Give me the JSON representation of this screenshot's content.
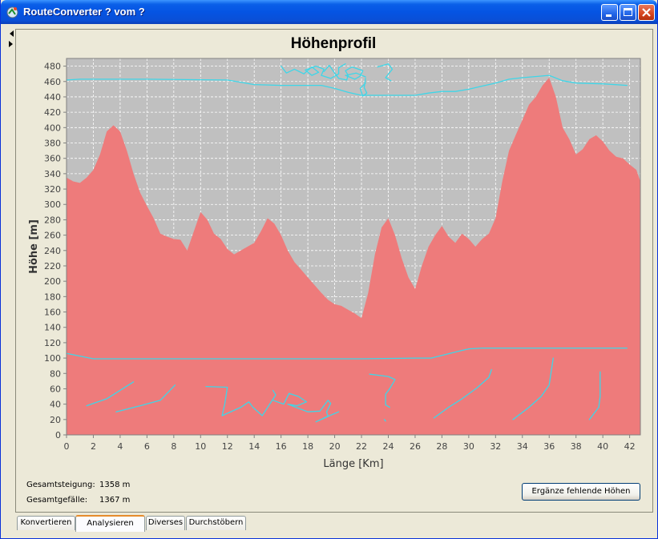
{
  "window": {
    "title": "RouteConverter ? vom ?"
  },
  "chart_data": {
    "type": "area",
    "title": "Höhenprofil",
    "xlabel": "Länge [Km]",
    "ylabel": "Höhe [m]",
    "xlim": [
      0,
      42.8
    ],
    "ylim": [
      0,
      490
    ],
    "x_ticks": [
      "0",
      "2",
      "4",
      "6",
      "8",
      "10",
      "12",
      "14",
      "16",
      "18",
      "20",
      "22",
      "24",
      "26",
      "28",
      "30",
      "32",
      "34",
      "36",
      "38",
      "40",
      "42"
    ],
    "y_ticks": [
      "0",
      "20",
      "40",
      "60",
      "80",
      "100",
      "120",
      "140",
      "160",
      "180",
      "200",
      "220",
      "240",
      "260",
      "280",
      "300",
      "320",
      "340",
      "360",
      "380",
      "400",
      "420",
      "440",
      "460",
      "480"
    ],
    "grid": true,
    "colors": {
      "fill": "#ee7b7b",
      "background": "#c0c0c0",
      "annotation": "#3ed6e8"
    },
    "series": [
      {
        "x": [
          0,
          0.5,
          1,
          1.5,
          2,
          2.5,
          3,
          3.5,
          4,
          4.5,
          5,
          5.5,
          6,
          6.5,
          7,
          7.5,
          8,
          8.5,
          9,
          9.5,
          10,
          10.5,
          11,
          11.5,
          12,
          12.5,
          13,
          13.5,
          14,
          14.5,
          15,
          15.5,
          16,
          16.5,
          17,
          17.5,
          18,
          18.5,
          19,
          19.5,
          20,
          20.5,
          21,
          21.5,
          22,
          22.5,
          23,
          23.5,
          24,
          24.5,
          25,
          25.5,
          26,
          26.5,
          27,
          27.5,
          28,
          28.5,
          29,
          29.5,
          30,
          30.5,
          31,
          31.5,
          32,
          32.5,
          33,
          33.5,
          34,
          34.5,
          35,
          35.5,
          36,
          36.5,
          37,
          37.5,
          38,
          38.5,
          39,
          39.5,
          40,
          40.5,
          41,
          41.5,
          42,
          42.5,
          42.8
        ],
        "values": [
          335,
          330,
          328,
          335,
          345,
          365,
          395,
          403,
          395,
          370,
          340,
          315,
          298,
          282,
          262,
          258,
          255,
          254,
          240,
          265,
          290,
          280,
          262,
          255,
          242,
          235,
          240,
          245,
          250,
          265,
          282,
          275,
          260,
          240,
          225,
          215,
          205,
          195,
          185,
          176,
          170,
          168,
          163,
          158,
          152,
          185,
          235,
          270,
          282,
          260,
          230,
          205,
          190,
          220,
          245,
          260,
          272,
          258,
          250,
          262,
          255,
          245,
          255,
          262,
          282,
          330,
          370,
          390,
          410,
          430,
          440,
          455,
          465,
          440,
          400,
          385,
          365,
          372,
          385,
          390,
          382,
          370,
          362,
          360,
          352,
          345,
          330
        ]
      }
    ],
    "annotations": [
      {
        "type": "polyline",
        "points": [
          [
            0,
            106
          ],
          [
            2,
            99
          ],
          [
            8,
            99
          ],
          [
            16,
            99
          ],
          [
            22,
            99
          ],
          [
            26,
            100
          ],
          [
            27.2,
            100
          ],
          [
            28.6,
            106
          ],
          [
            29.5,
            110
          ],
          [
            30,
            112
          ],
          [
            31,
            113
          ],
          [
            34,
            113
          ],
          [
            38,
            113
          ],
          [
            41.8,
            113
          ]
        ]
      },
      {
        "type": "polyline",
        "points": [
          [
            0,
            462
          ],
          [
            1,
            463
          ],
          [
            6,
            463
          ],
          [
            12,
            462
          ],
          [
            14,
            456
          ],
          [
            16,
            455
          ],
          [
            19,
            455
          ],
          [
            20,
            451
          ],
          [
            21,
            446
          ],
          [
            22,
            442
          ],
          [
            24,
            442
          ],
          [
            26,
            442
          ],
          [
            27,
            445
          ],
          [
            28,
            447
          ],
          [
            29,
            447
          ],
          [
            30,
            450
          ],
          [
            31,
            454
          ],
          [
            32,
            458
          ],
          [
            33,
            463
          ],
          [
            34,
            465
          ],
          [
            36,
            468
          ],
          [
            37,
            461
          ],
          [
            38,
            458
          ],
          [
            40,
            457
          ],
          [
            41.8,
            455
          ]
        ]
      },
      {
        "type": "polyline",
        "points": [
          [
            16,
            480
          ],
          [
            16.4,
            471
          ],
          [
            17,
            476
          ],
          [
            17.7,
            470
          ],
          [
            18.3,
            479
          ],
          [
            18.8,
            472
          ],
          [
            18.3,
            468
          ],
          [
            17.8,
            475
          ],
          [
            18.6,
            480
          ],
          [
            19.2,
            476
          ],
          [
            19,
            468
          ],
          [
            19.7,
            464
          ],
          [
            20.3,
            470
          ],
          [
            20.3,
            478
          ],
          [
            20.8,
            483
          ]
        ]
      },
      {
        "type": "polyline",
        "points": [
          [
            19.2,
            473
          ],
          [
            19.6,
            481
          ],
          [
            20,
            471
          ],
          [
            20.3,
            464
          ],
          [
            20.9,
            462
          ],
          [
            21,
            468
          ],
          [
            20.8,
            474
          ],
          [
            21.3,
            479
          ],
          [
            22.1,
            474
          ],
          [
            21.9,
            467
          ],
          [
            21.5,
            463
          ],
          [
            20.8,
            468
          ],
          [
            21.6,
            471
          ],
          [
            22.3,
            466
          ]
        ]
      },
      {
        "type": "polyline",
        "points": [
          [
            22.3,
            464
          ],
          [
            22.2,
            452
          ],
          [
            22.4,
            445
          ],
          [
            22.1,
            441
          ],
          [
            21.9,
            451
          ],
          [
            22.3,
            458
          ]
        ]
      },
      {
        "type": "polyline",
        "points": [
          [
            23.2,
            479
          ],
          [
            24,
            483
          ],
          [
            24.3,
            476
          ],
          [
            23.8,
            465
          ],
          [
            24.2,
            461
          ]
        ]
      },
      {
        "type": "polyline",
        "points": [
          [
            1.5,
            38
          ],
          [
            3,
            47
          ],
          [
            5,
            69
          ]
        ]
      },
      {
        "type": "polyline",
        "points": [
          [
            3.7,
            30
          ],
          [
            5.5,
            38
          ],
          [
            7,
            45
          ],
          [
            8.1,
            65
          ]
        ]
      },
      {
        "type": "polyline",
        "points": [
          [
            10.4,
            63
          ],
          [
            12,
            62
          ],
          [
            11.8,
            40
          ],
          [
            11.6,
            25
          ],
          [
            13,
            36
          ],
          [
            13.6,
            43
          ],
          [
            13.9,
            36
          ],
          [
            14.6,
            25
          ],
          [
            15.6,
            52
          ],
          [
            15.4,
            58
          ]
        ]
      },
      {
        "type": "polyline",
        "points": [
          [
            15.4,
            45
          ],
          [
            16.2,
            40
          ],
          [
            16.6,
            54
          ],
          [
            17.3,
            50
          ],
          [
            17.9,
            43
          ],
          [
            17.2,
            38
          ],
          [
            16.5,
            40
          ],
          [
            18,
            30
          ],
          [
            18.9,
            31
          ],
          [
            19.5,
            45
          ],
          [
            19.7,
            41
          ],
          [
            19.4,
            30
          ],
          [
            19.5,
            24
          ],
          [
            18.6,
            17
          ],
          [
            19.2,
            22
          ],
          [
            20.3,
            30
          ]
        ]
      },
      {
        "type": "polyline",
        "points": [
          [
            22.6,
            79
          ],
          [
            24,
            76
          ],
          [
            24.5,
            72
          ],
          [
            24.1,
            60
          ],
          [
            23.8,
            53
          ],
          [
            23.8,
            39
          ],
          [
            24.1,
            36
          ]
        ]
      },
      {
        "type": "polyline",
        "points": [
          [
            23.7,
            20
          ],
          [
            23.8,
            18
          ]
        ]
      },
      {
        "type": "polyline",
        "points": [
          [
            27.4,
            22
          ],
          [
            28.5,
            36
          ],
          [
            29.5,
            47
          ],
          [
            30.6,
            61
          ],
          [
            31.5,
            75
          ],
          [
            31.7,
            85
          ]
        ]
      },
      {
        "type": "polyline",
        "points": [
          [
            33.3,
            20
          ],
          [
            34.5,
            36
          ],
          [
            35.4,
            50
          ],
          [
            36,
            65
          ],
          [
            36.3,
            100
          ]
        ]
      },
      {
        "type": "polyline",
        "points": [
          [
            39,
            20
          ],
          [
            39.7,
            36
          ],
          [
            39.8,
            50
          ],
          [
            39.8,
            64
          ],
          [
            39.8,
            82
          ]
        ]
      }
    ]
  },
  "stats": {
    "ascent_label": "Gesamtsteigung:",
    "ascent_value": "1358 m",
    "descent_label": "Gesamtgefälle:",
    "descent_value": "1367 m"
  },
  "action_button": {
    "label": "Ergänze fehlende Höhen"
  },
  "tabs": [
    {
      "label": "Konvertieren"
    },
    {
      "label": "Analysieren"
    },
    {
      "label": "Diverses"
    },
    {
      "label": "Durchstöbern"
    }
  ]
}
